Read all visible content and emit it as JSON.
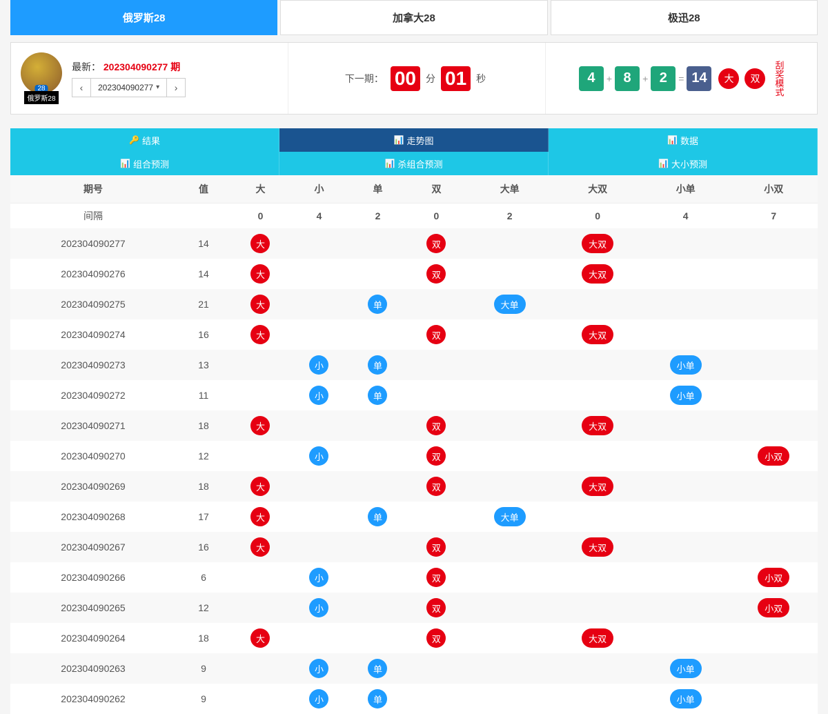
{
  "colors": {
    "red": "#e60012",
    "blue": "#1e9cff",
    "teal": "#1fa67a",
    "navy": "#4a5f8e",
    "green_box": "#1fa67a",
    "navy_box": "#4a5f8e"
  },
  "top_tabs": [
    {
      "label": "俄罗斯28",
      "active": true
    },
    {
      "label": "加拿大28",
      "active": false
    },
    {
      "label": "极迅28",
      "active": false
    }
  ],
  "info": {
    "logo_caption": "俄罗斯28",
    "latest_label": "最新：",
    "latest_value": "202304090277 期",
    "dropdown_value": "202304090277",
    "countdown": {
      "prefix": "下一期：",
      "mm": "00",
      "mm_unit": "分",
      "ss": "01",
      "ss_unit": "秒"
    },
    "result": {
      "a": "4",
      "b": "8",
      "c": "2",
      "sum": "14",
      "tag_big": "大",
      "tag_even": "双",
      "color_a": "#1fa67a",
      "color_b": "#1fa67a",
      "color_c": "#1fa67a",
      "color_sum": "#4a5f8e"
    },
    "scratch": "刮奖模式"
  },
  "nav_rows": [
    [
      {
        "icon": "🔑",
        "label": "结果",
        "active": false
      },
      {
        "icon": "📊",
        "label": "走势图",
        "active": true
      },
      {
        "icon": "📊",
        "label": "数据",
        "active": false
      }
    ],
    [
      {
        "icon": "📊",
        "label": "组合预测",
        "active": false
      },
      {
        "icon": "📊",
        "label": "杀组合预测",
        "active": false
      },
      {
        "icon": "📊",
        "label": "大小预测",
        "active": false
      }
    ]
  ],
  "table": {
    "headers": [
      "期号",
      "值",
      "大",
      "小",
      "单",
      "双",
      "大单",
      "大双",
      "小单",
      "小双"
    ],
    "gap_row_label": "间隔",
    "gap_values": [
      "0",
      "4",
      "2",
      "0",
      "2",
      "0",
      "4",
      "7"
    ],
    "rows": [
      {
        "period": "202304090277",
        "val": "14",
        "tags": {
          "da": "大",
          "shuang": "双",
          "dashuang": "大双"
        }
      },
      {
        "period": "202304090276",
        "val": "14",
        "tags": {
          "da": "大",
          "shuang": "双",
          "dashuang": "大双"
        }
      },
      {
        "period": "202304090275",
        "val": "21",
        "tags": {
          "da": "大",
          "dan": "单",
          "dadan": "大单"
        }
      },
      {
        "period": "202304090274",
        "val": "16",
        "tags": {
          "da": "大",
          "shuang": "双",
          "dashuang": "大双"
        }
      },
      {
        "period": "202304090273",
        "val": "13",
        "tags": {
          "xiao": "小",
          "dan": "单",
          "xiaodan": "小单"
        }
      },
      {
        "period": "202304090272",
        "val": "11",
        "tags": {
          "xiao": "小",
          "dan": "单",
          "xiaodan": "小单"
        }
      },
      {
        "period": "202304090271",
        "val": "18",
        "tags": {
          "da": "大",
          "shuang": "双",
          "dashuang": "大双"
        }
      },
      {
        "period": "202304090270",
        "val": "12",
        "tags": {
          "xiao": "小",
          "shuang": "双",
          "xiaoshuang": "小双"
        }
      },
      {
        "period": "202304090269",
        "val": "18",
        "tags": {
          "da": "大",
          "shuang": "双",
          "dashuang": "大双"
        }
      },
      {
        "period": "202304090268",
        "val": "17",
        "tags": {
          "da": "大",
          "dan": "单",
          "dadan": "大单"
        }
      },
      {
        "period": "202304090267",
        "val": "16",
        "tags": {
          "da": "大",
          "shuang": "双",
          "dashuang": "大双"
        }
      },
      {
        "period": "202304090266",
        "val": "6",
        "tags": {
          "xiao": "小",
          "shuang": "双",
          "xiaoshuang": "小双"
        }
      },
      {
        "period": "202304090265",
        "val": "12",
        "tags": {
          "xiao": "小",
          "shuang": "双",
          "xiaoshuang": "小双"
        }
      },
      {
        "period": "202304090264",
        "val": "18",
        "tags": {
          "da": "大",
          "shuang": "双",
          "dashuang": "大双"
        }
      },
      {
        "period": "202304090263",
        "val": "9",
        "tags": {
          "xiao": "小",
          "dan": "单",
          "xiaodan": "小单"
        }
      },
      {
        "period": "202304090262",
        "val": "9",
        "tags": {
          "xiao": "小",
          "dan": "单",
          "xiaodan": "小单"
        }
      }
    ],
    "tag_styles": {
      "da": {
        "shape": "circle",
        "color": "red"
      },
      "xiao": {
        "shape": "circle",
        "color": "blue"
      },
      "dan": {
        "shape": "circle",
        "color": "blue"
      },
      "shuang": {
        "shape": "circle",
        "color": "red"
      },
      "dadan": {
        "shape": "pill",
        "color": "blue"
      },
      "dashuang": {
        "shape": "pill",
        "color": "red"
      },
      "xiaodan": {
        "shape": "pill",
        "color": "blue"
      },
      "xiaoshuang": {
        "shape": "pill",
        "color": "red"
      }
    },
    "tag_columns": [
      "da",
      "xiao",
      "dan",
      "shuang",
      "dadan",
      "dashuang",
      "xiaodan",
      "xiaoshuang"
    ]
  }
}
